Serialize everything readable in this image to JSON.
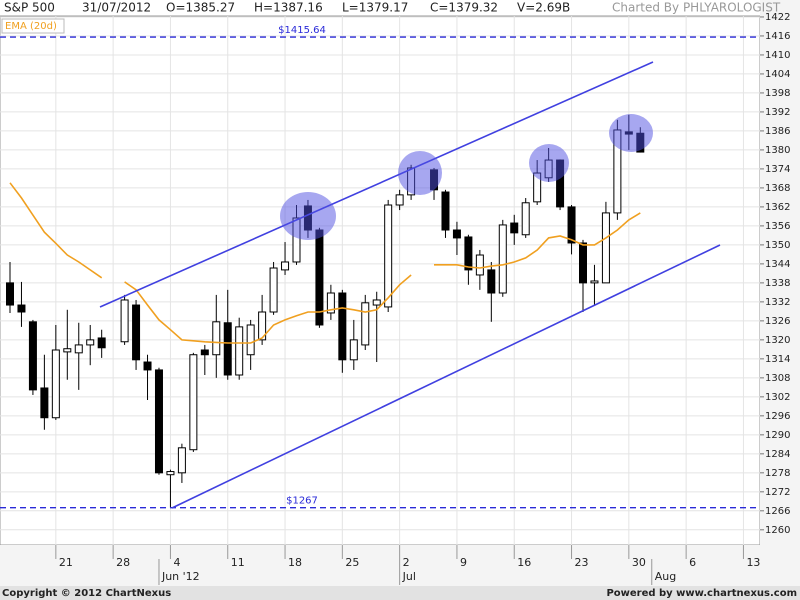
{
  "header": {
    "symbol": "S&P 500",
    "date": "31/07/2012",
    "open": "O=1385.27",
    "high": "H=1387.16",
    "low": "L=1379.17",
    "close": "C=1379.32",
    "volume": "V=2.69B",
    "credit": "Charted By PHLYAROLOGIST"
  },
  "footer": {
    "copyright": "Copyright © 2012 ChartNexus",
    "powered": "Powered by www.chartnexus.com"
  },
  "chart_data": {
    "type": "candlestick",
    "categories": [
      null,
      null,
      null,
      null,
      "21",
      null,
      null,
      null,
      null,
      "28",
      null,
      null,
      null,
      null,
      "4",
      null,
      null,
      null,
      null,
      "11",
      null,
      null,
      null,
      null,
      "18",
      null,
      null,
      null,
      null,
      "25",
      null,
      null,
      null,
      null,
      "2",
      null,
      null,
      null,
      null,
      "9",
      null,
      null,
      null,
      null,
      "16",
      null,
      null,
      null,
      null,
      "23",
      null,
      null,
      null,
      null,
      "30",
      null,
      null,
      null,
      null,
      "6",
      null,
      null,
      null,
      null,
      "13",
      null
    ],
    "months": [
      null,
      null,
      null,
      null,
      null,
      null,
      null,
      null,
      null,
      null,
      null,
      null,
      null,
      "Jun '12",
      null,
      null,
      null,
      null,
      null,
      null,
      null,
      null,
      null,
      null,
      null,
      null,
      null,
      null,
      null,
      null,
      null,
      null,
      null,
      null,
      "Jul",
      null,
      null,
      null,
      null,
      null,
      null,
      null,
      null,
      null,
      null,
      null,
      null,
      null,
      null,
      null,
      null,
      null,
      null,
      null,
      null,
      null,
      "Aug",
      null,
      null,
      null,
      null,
      null,
      null,
      null,
      null,
      null
    ],
    "ohlc": {
      "open": [
        1338,
        1331,
        1325.7,
        1304.8,
        1295.4,
        1316.2,
        1315.9,
        1318.4,
        1320.6,
        null,
        1319.4,
        1331,
        1313,
        1310.5,
        1277.4,
        1278,
        1285.3,
        1316.8,
        1315.3,
        1325.4,
        1308.9,
        1315.3,
        1320,
        1328.8,
        1342.1,
        1344.6,
        1362.3,
        1354.7,
        1328.5,
        1334.8,
        1313.7,
        1318.4,
        1331,
        1330.4,
        1362.6,
        1365.8,
        null,
        1373.7,
        1366.7,
        1354.7,
        1352.5,
        1340.5,
        1342.1,
        1334.8,
        1356.9,
        1353.2,
        1363.6,
        1371.2,
        1376.8,
        1362,
        1350.6,
        1338,
        1338,
        1360.1,
        1385.7,
        1385.27,
        null,
        null,
        null,
        null,
        null,
        null,
        null,
        null,
        null,
        null
      ],
      "high": [
        1344.6,
        1338.3,
        1326.3,
        1315.3,
        1324.7,
        1329.5,
        1325.4,
        1324.7,
        1323.2,
        null,
        1334.2,
        1332.6,
        1315.3,
        1311.2,
        1279,
        1287.2,
        1315.9,
        1318.4,
        1334.2,
        1335.8,
        1327,
        1326.3,
        1334.2,
        1344.6,
        1350.9,
        1362.6,
        1364.2,
        1355.4,
        1337.4,
        1335.8,
        1326.3,
        1334.2,
        1335.2,
        1364.2,
        1367.4,
        1375.3,
        null,
        1374.3,
        1367.4,
        1357.3,
        1353.2,
        1348.4,
        1344.6,
        1357.9,
        1359.5,
        1364.8,
        1376.8,
        1380.6,
        1377,
        1362.6,
        1351.6,
        1343.7,
        1363.6,
        1389.5,
        1391.1,
        1387.16,
        null,
        null,
        null,
        null,
        null,
        null,
        null,
        null,
        null,
        null
      ],
      "low": [
        1328.5,
        1324.1,
        1302.6,
        1291.6,
        1294.7,
        1307.4,
        1304.2,
        1312,
        1314.3,
        null,
        1318.4,
        1310.5,
        1301,
        1277.4,
        1267,
        1274.8,
        1284.6,
        1308.9,
        1308,
        1307.4,
        1307.4,
        1310.5,
        1318.4,
        1327.9,
        1340.5,
        1343.7,
        1352.2,
        1323.8,
        1326.3,
        1309.6,
        1310.5,
        1316.8,
        1313,
        1328.8,
        1361,
        1364.2,
        null,
        1364.2,
        1352.2,
        1346.8,
        1337.4,
        1335.8,
        1325.7,
        1333.6,
        1350,
        1352.2,
        1362.6,
        1369.9,
        1361,
        1347,
        1328.8,
        1331,
        1338,
        1357.9,
        1380,
        1379.17,
        null,
        null,
        null,
        null,
        null,
        null,
        null,
        null,
        null,
        null
      ],
      "close": [
        1331,
        1328.8,
        1304.2,
        1295.4,
        1316.8,
        1317.2,
        1318.4,
        1320,
        1317.5,
        null,
        1332.6,
        1313.7,
        1310.5,
        1278,
        1278.4,
        1285.9,
        1315.3,
        1315.3,
        1325.7,
        1308.9,
        1324.1,
        1324.7,
        1328.8,
        1342.7,
        1344.6,
        1358.5,
        1354.7,
        1324.7,
        1334.8,
        1313.7,
        1320,
        1331.7,
        1332.6,
        1362.6,
        1365.8,
        1374.3,
        null,
        1367.4,
        1354.7,
        1352.2,
        1342.1,
        1346.8,
        1334.8,
        1356.3,
        1353.8,
        1363.3,
        1372.7,
        1376.8,
        1362,
        1350.6,
        1338,
        1338.6,
        1360.1,
        1386.3,
        1385,
        1379.32,
        null,
        null,
        null,
        null,
        null,
        null,
        null,
        null,
        null,
        null
      ],
      "up_color": "#ffffff",
      "down_color": "#000000"
    },
    "series": [
      {
        "name": "EMA (20d)",
        "color": "#f0a020",
        "values": [
          1369.6,
          1364.8,
          1359.4,
          1354,
          1350.5,
          1346.8,
          1344.6,
          1342.1,
          1339.6,
          null,
          1338.3,
          1335.8,
          1331,
          1326.3,
          1323.2,
          1320,
          1319.7,
          1319.4,
          1319.2,
          1319,
          1319,
          1319,
          1320.6,
          1324.7,
          1326.3,
          1327.6,
          1328.8,
          1328.8,
          1329.5,
          1330.1,
          1329.5,
          1328.8,
          1329.5,
          1333.3,
          1337.4,
          1340.5,
          null,
          1343.7,
          1343.7,
          1343.7,
          1343,
          1342.7,
          1343.3,
          1343.7,
          1344.6,
          1345.9,
          1348.4,
          1352.2,
          1352.8,
          1351.6,
          1350,
          1350,
          1352.2,
          1354.7,
          1357.9,
          1360.1,
          null,
          null,
          null,
          null,
          null,
          null,
          null,
          null,
          null,
          null
        ]
      }
    ],
    "levels": [
      {
        "value": 1415.64,
        "label": "$1415.64"
      },
      {
        "value": 1267,
        "label": "$1267"
      }
    ],
    "level_color": "#2a2ad8",
    "ylim": [
      1255.2,
      1422.3
    ],
    "yticks": [
      1260,
      1266,
      1272,
      1278,
      1284,
      1290,
      1296,
      1302,
      1308,
      1314,
      1320,
      1326,
      1332,
      1338,
      1344,
      1350,
      1356,
      1362,
      1368,
      1374,
      1380,
      1386,
      1392,
      1398,
      1404,
      1410,
      1416,
      1422
    ],
    "grid": true
  }
}
